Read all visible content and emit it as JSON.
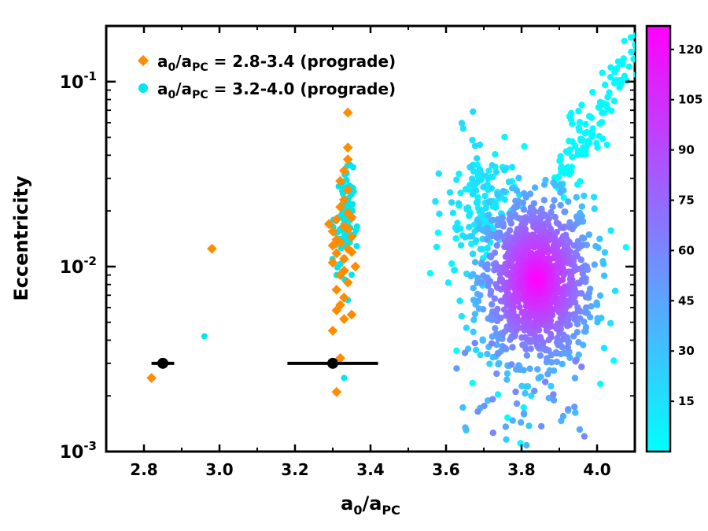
{
  "chart_data": {
    "type": "scatter",
    "title": "",
    "xlabel": {
      "base": "a",
      "sub1": "0",
      "slash": "/",
      "base2": "a",
      "sub2": "PC"
    },
    "ylabel": "Eccentricity",
    "xlim": [
      2.7,
      4.1
    ],
    "ylim": [
      0.001,
      0.2
    ],
    "yscale": "log",
    "xticks": [
      {
        "value": 2.8,
        "label": "2.8"
      },
      {
        "value": 3.0,
        "label": "3.0"
      },
      {
        "value": 3.2,
        "label": "3.2"
      },
      {
        "value": 3.4,
        "label": "3.4"
      },
      {
        "value": 3.6,
        "label": "3.6"
      },
      {
        "value": 3.8,
        "label": "3.8"
      },
      {
        "value": 4.0,
        "label": "4.0"
      }
    ],
    "yticks": [
      {
        "value": 0.001,
        "base": "10",
        "exp": "-3"
      },
      {
        "value": 0.01,
        "base": "10",
        "exp": "-2"
      },
      {
        "value": 0.1,
        "base": "10",
        "exp": "-1"
      }
    ],
    "colorbar": {
      "range": [
        0,
        127
      ],
      "ticks": [
        "15",
        "30",
        "45",
        "60",
        "75",
        "90",
        "105",
        "120"
      ],
      "tick_values": [
        15,
        30,
        45,
        60,
        75,
        90,
        105,
        120
      ],
      "colors": [
        "#00ffff",
        "#ff00ff"
      ]
    },
    "legend": {
      "placement": "top-left",
      "entries": [
        {
          "marker": "diamond",
          "color": "#ff8c00",
          "name_prefix": "a",
          "sub1": "0",
          "mid": "/a",
          "sub2": "PC",
          "suffix": " = 2.8-3.4 (prograde)"
        },
        {
          "marker": "circle",
          "color": "#00e5ee",
          "name_prefix": "a",
          "sub1": "0",
          "mid": "/a",
          "sub2": "PC",
          "suffix": " = 3.2-4.0 (prograde)"
        }
      ]
    },
    "series": [
      {
        "name": "a0/aPC = 2.8-3.4 (prograde)",
        "marker": "diamond",
        "color": "#ff8c00",
        "points": [
          [
            2.82,
            0.0025
          ],
          [
            2.98,
            0.0125
          ],
          [
            3.31,
            0.0021
          ],
          [
            3.3,
            0.003
          ],
          [
            3.32,
            0.0032
          ],
          [
            3.3,
            0.0045
          ],
          [
            3.33,
            0.0052
          ],
          [
            3.35,
            0.0055
          ],
          [
            3.31,
            0.0058
          ],
          [
            3.32,
            0.0062
          ],
          [
            3.33,
            0.0068
          ],
          [
            3.31,
            0.0075
          ],
          [
            3.34,
            0.0082
          ],
          [
            3.32,
            0.009
          ],
          [
            3.36,
            0.01
          ],
          [
            3.3,
            0.0105
          ],
          [
            3.33,
            0.011
          ],
          [
            3.31,
            0.0118
          ],
          [
            3.34,
            0.0125
          ],
          [
            3.32,
            0.0135
          ],
          [
            3.35,
            0.0145
          ],
          [
            3.3,
            0.0155
          ],
          [
            3.33,
            0.0165
          ],
          [
            3.31,
            0.018
          ],
          [
            3.34,
            0.0195
          ],
          [
            3.32,
            0.021
          ],
          [
            3.33,
            0.023
          ],
          [
            3.34,
            0.026
          ],
          [
            3.32,
            0.029
          ],
          [
            3.33,
            0.033
          ],
          [
            3.34,
            0.038
          ],
          [
            3.34,
            0.044
          ],
          [
            3.34,
            0.068
          ],
          [
            3.35,
            0.0185
          ],
          [
            3.29,
            0.017
          ],
          [
            3.31,
            0.014
          ],
          [
            3.35,
            0.012
          ],
          [
            3.33,
            0.0095
          ],
          [
            3.3,
            0.013
          ],
          [
            3.34,
            0.016
          ]
        ]
      },
      {
        "name": "a0/aPC = 3.2-4.0 (prograde)",
        "marker": "circle",
        "color_by_density": true,
        "isolated_points": [
          [
            2.96,
            0.0042
          ],
          [
            3.33,
            0.0025
          ],
          [
            3.34,
            0.0066
          ],
          [
            3.31,
            0.009
          ]
        ],
        "column_center": [
          3.33,
          0.018
        ],
        "main_cluster_center": [
          3.84,
          0.0085
        ],
        "upper_branch_range": [
          3.9,
          4.1
        ],
        "note": "dense point cloud around a0/aPC 3.6-4.0, eccentricity 0.001-0.05; tail to 0.15 at 4.0-4.1"
      }
    ],
    "error_bars": [
      {
        "x": 2.85,
        "y": 0.003,
        "xmin": 2.82,
        "xmax": 2.88
      },
      {
        "x": 3.3,
        "y": 0.003,
        "xmin": 3.18,
        "xmax": 3.42
      }
    ]
  }
}
